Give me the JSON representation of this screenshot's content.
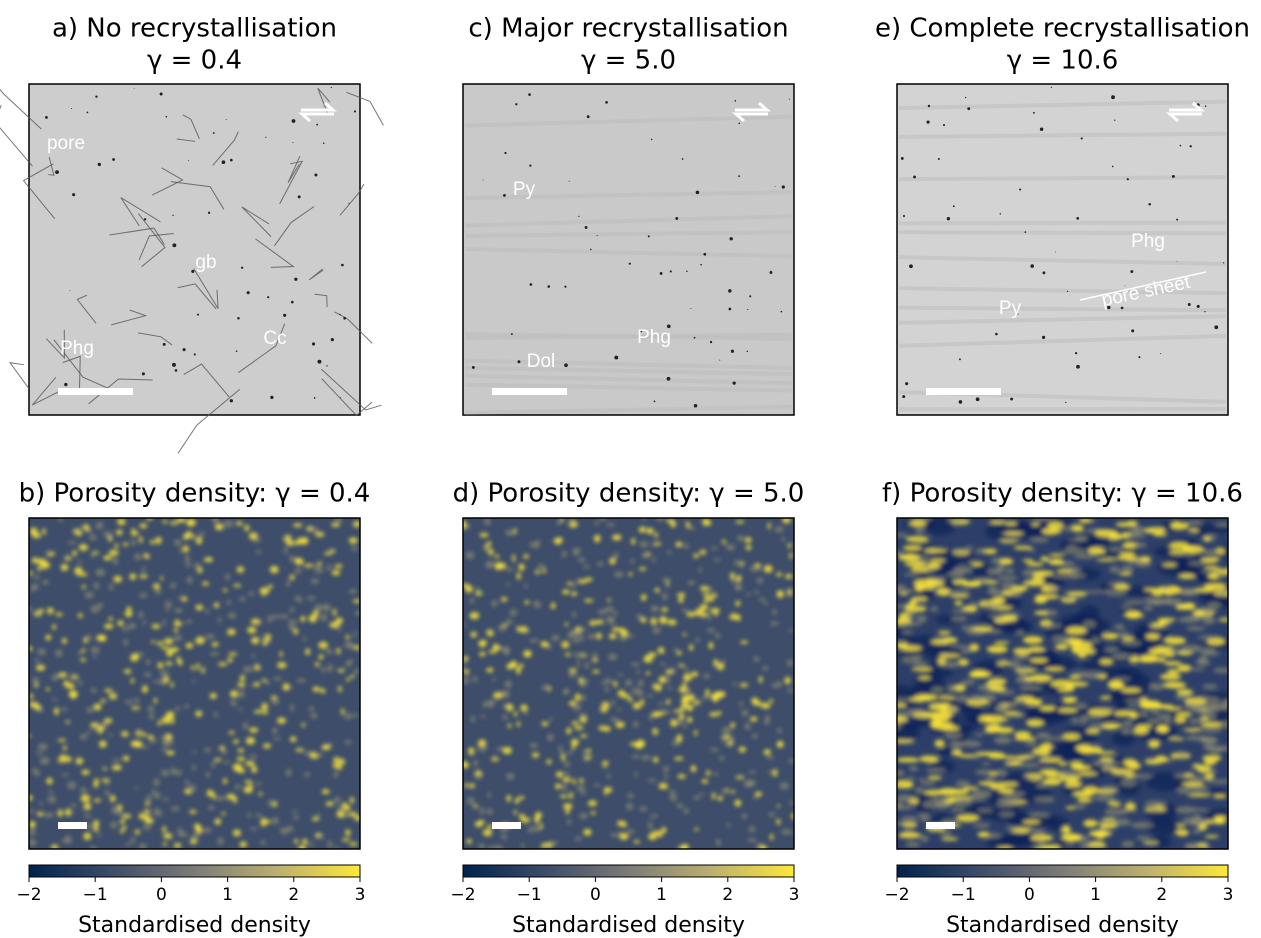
{
  "figure": {
    "panels": [
      {
        "title": "a) No recrystallisation",
        "subtitle": "γ = 0.4",
        "labels": [
          "pore",
          "gb",
          "Phg",
          "Cc"
        ]
      },
      {
        "title": "c) Major recrystallisation",
        "subtitle": "γ = 5.0",
        "labels": [
          "Py",
          "Phg",
          "Dol"
        ]
      },
      {
        "title": "e) Complete recrystallisation",
        "subtitle": "γ = 10.6",
        "labels": [
          "Phg",
          "Py",
          "pore sheet"
        ]
      }
    ],
    "density_panels": [
      {
        "title": "b) Porosity density: γ = 0.4"
      },
      {
        "title": "d) Porosity density: γ = 5.0"
      },
      {
        "title": "f) Porosity density: γ = 10.6"
      }
    ],
    "colorbar": {
      "lim": [
        -2,
        3
      ],
      "ticks": [
        {
          "value": -2,
          "label": "−2"
        },
        {
          "value": -1,
          "label": "−1"
        },
        0,
        1,
        2,
        3
      ],
      "label": "Standardised density",
      "colors": [
        "#00224e",
        "#3d4d6a",
        "#7c7b78",
        "#bcaf6f",
        "#fee838"
      ]
    }
  }
}
